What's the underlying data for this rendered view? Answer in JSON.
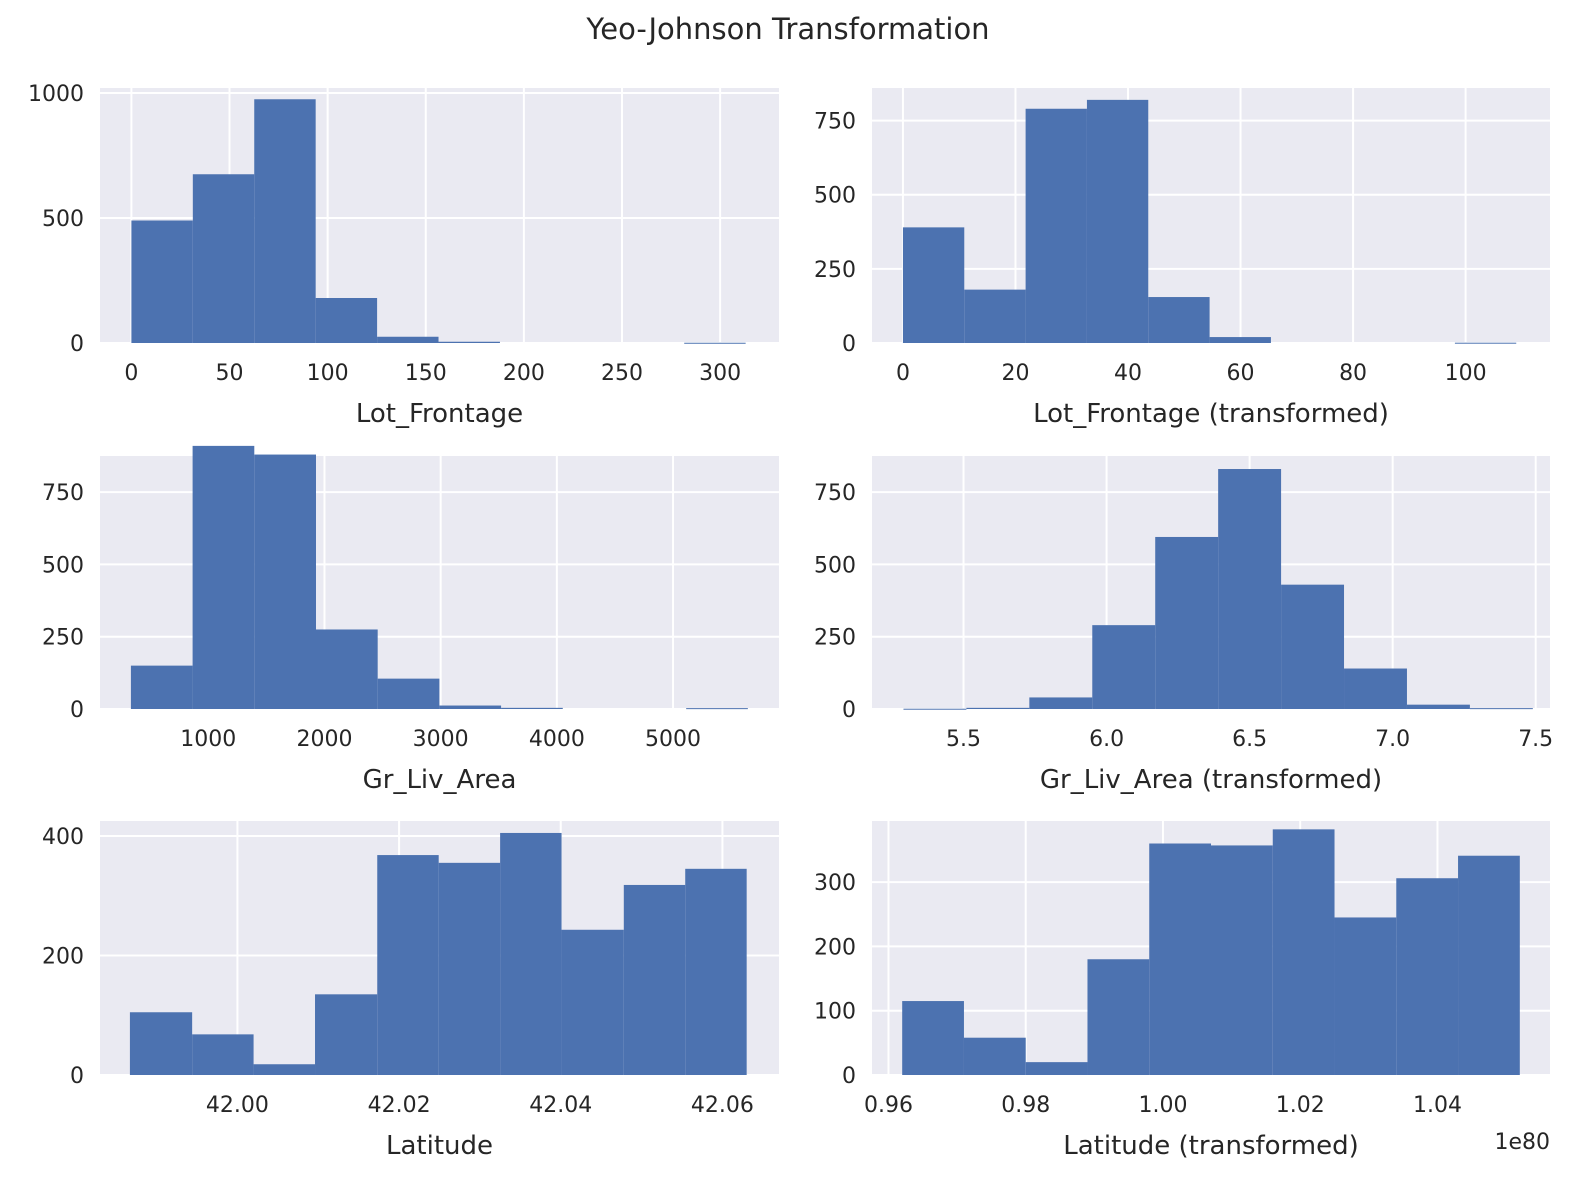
{
  "title": "Yeo-Johnson Transformation",
  "chart_data": [
    {
      "type": "bar",
      "xlabel": "Lot_Frontage",
      "ylabel": "",
      "xlim": [
        -16,
        330
      ],
      "ylim": [
        0,
        1020
      ],
      "xticks": [
        0,
        50,
        100,
        150,
        200,
        250,
        300
      ],
      "xtick_labels": [
        "0",
        "50",
        "100",
        "150",
        "200",
        "250",
        "300"
      ],
      "yticks": [
        0,
        500,
        1000
      ],
      "ytick_labels": [
        "0",
        "500",
        "1000"
      ],
      "bin_edges": [
        0,
        31.3,
        62.6,
        93.9,
        125.2,
        156.5,
        187.8,
        219.1,
        250.4,
        281.7,
        313
      ],
      "values": [
        490,
        675,
        975,
        180,
        25,
        5,
        0,
        0,
        0,
        1
      ]
    },
    {
      "type": "bar",
      "xlabel": "Lot_Frontage (transformed)",
      "ylabel": "",
      "xlim": [
        -5.5,
        115
      ],
      "ylim": [
        0,
        860
      ],
      "xticks": [
        0,
        20,
        40,
        60,
        80,
        100
      ],
      "xtick_labels": [
        "0",
        "20",
        "40",
        "60",
        "80",
        "100"
      ],
      "yticks": [
        0,
        250,
        500,
        750
      ],
      "ytick_labels": [
        "0",
        "250",
        "500",
        "750"
      ],
      "bin_edges": [
        0,
        10.9,
        21.8,
        32.7,
        43.6,
        54.5,
        65.4,
        76.3,
        87.2,
        98.1,
        109
      ],
      "values": [
        390,
        180,
        790,
        820,
        155,
        20,
        0,
        0,
        0,
        1
      ]
    },
    {
      "type": "bar",
      "xlabel": "Gr_Liv_Area",
      "ylabel": "",
      "xlim": [
        68,
        5912
      ],
      "ylim": [
        0,
        875
      ],
      "xticks": [
        1000,
        2000,
        3000,
        4000,
        5000
      ],
      "xtick_labels": [
        "1000",
        "2000",
        "3000",
        "4000",
        "5000"
      ],
      "yticks": [
        0,
        250,
        500,
        750
      ],
      "ytick_labels": [
        "0",
        "250",
        "500",
        "750"
      ],
      "bin_edges": [
        334,
        865,
        1396,
        1927,
        2458,
        2989,
        3520,
        4051,
        4582,
        5113,
        5644
      ],
      "values": [
        150,
        910,
        880,
        275,
        105,
        12,
        4,
        0,
        0,
        3
      ]
    },
    {
      "type": "bar",
      "xlabel": "Gr_Liv_Area (transformed)",
      "ylabel": "",
      "xlim": [
        5.18,
        7.55
      ],
      "ylim": [
        0,
        875
      ],
      "xticks": [
        5.5,
        6.0,
        6.5,
        7.0,
        7.5
      ],
      "xtick_labels": [
        "5.5",
        "6.0",
        "6.5",
        "7.0",
        "7.5"
      ],
      "yticks": [
        0,
        250,
        500,
        750
      ],
      "ytick_labels": [
        "0",
        "250",
        "500",
        "750"
      ],
      "bin_edges": [
        5.29,
        5.51,
        5.73,
        5.95,
        6.17,
        6.39,
        6.61,
        6.83,
        7.05,
        7.27,
        7.49
      ],
      "values": [
        1,
        4,
        40,
        290,
        595,
        830,
        430,
        140,
        15,
        3
      ]
    },
    {
      "type": "bar",
      "xlabel": "Latitude",
      "ylabel": "",
      "xlim": [
        41.983,
        42.067
      ],
      "ylim": [
        0,
        425
      ],
      "xticks": [
        42.0,
        42.02,
        42.04,
        42.06
      ],
      "xtick_labels": [
        "42.00",
        "42.02",
        "42.04",
        "42.06"
      ],
      "yticks": [
        0,
        200,
        400
      ],
      "ytick_labels": [
        "0",
        "200",
        "400"
      ],
      "bin_edges": [
        41.9867,
        41.9944,
        42.002,
        42.0096,
        42.0173,
        42.0249,
        42.0325,
        42.0401,
        42.0478,
        42.0554,
        42.063
      ],
      "values": [
        105,
        68,
        18,
        135,
        368,
        355,
        405,
        243,
        318,
        345
      ]
    },
    {
      "type": "bar",
      "xlabel": "Latitude (transformed)",
      "ylabel": "",
      "axis_offset_label": "1e80",
      "xlim": [
        0.9576,
        1.0564
      ],
      "ylim": [
        0,
        395
      ],
      "xticks": [
        0.96,
        0.98,
        1.0,
        1.02,
        1.04
      ],
      "xtick_labels": [
        "0.96",
        "0.98",
        "1.00",
        "1.02",
        "1.04"
      ],
      "yticks": [
        0,
        100,
        200,
        300
      ],
      "ytick_labels": [
        "0",
        "100",
        "200",
        "300"
      ],
      "bin_edges": [
        0.962,
        0.971,
        0.98,
        0.989,
        0.998,
        1.007,
        1.016,
        1.025,
        1.034,
        1.043,
        1.052
      ],
      "values": [
        115,
        58,
        20,
        180,
        360,
        357,
        382,
        245,
        306,
        341
      ]
    }
  ]
}
